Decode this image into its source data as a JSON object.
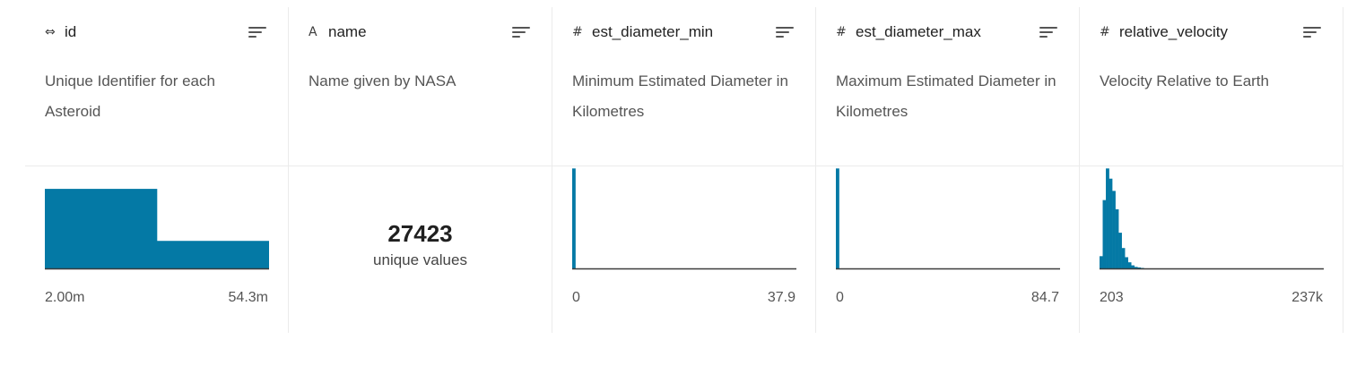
{
  "colors": {
    "bar": "#0479a5",
    "axis": "#3c3c3c",
    "divider": "#ebebeb"
  },
  "columns": [
    {
      "type_icon": "⇔",
      "type_icon_name": "key-icon",
      "name": "id",
      "description": "Unique Identifier for each Asteroid",
      "range_min": "2.00m",
      "range_max": "54.3m",
      "histogram": [
        0.78,
        0.27
      ]
    },
    {
      "type_icon": "A",
      "type_icon_name": "text-type-icon",
      "name": "name",
      "description": "Name given by NASA",
      "unique_count": "27423",
      "unique_label": "unique values"
    },
    {
      "type_icon": "#",
      "type_icon_name": "number-type-icon",
      "name": "est_diameter_min",
      "description": "Minimum Estimated Diameter in Kilometres",
      "range_min": "0",
      "range_max": "37.9",
      "histogram": [
        0.98,
        0,
        0,
        0,
        0,
        0,
        0,
        0,
        0,
        0,
        0,
        0,
        0,
        0,
        0,
        0,
        0,
        0,
        0,
        0,
        0,
        0,
        0,
        0,
        0,
        0,
        0,
        0,
        0,
        0,
        0,
        0,
        0,
        0,
        0,
        0,
        0,
        0,
        0,
        0,
        0,
        0,
        0,
        0,
        0,
        0,
        0,
        0,
        0,
        0,
        0,
        0,
        0,
        0,
        0,
        0,
        0,
        0,
        0,
        0,
        0,
        0,
        0,
        0,
        0,
        0,
        0,
        0,
        0,
        0,
        0
      ]
    },
    {
      "type_icon": "#",
      "type_icon_name": "number-type-icon",
      "name": "est_diameter_max",
      "description": "Maximum Estimated Diameter in Kilometres",
      "range_min": "0",
      "range_max": "84.7",
      "histogram": [
        0.98,
        0,
        0,
        0,
        0,
        0,
        0,
        0,
        0,
        0,
        0,
        0,
        0,
        0,
        0,
        0,
        0,
        0,
        0,
        0,
        0,
        0,
        0,
        0,
        0,
        0,
        0,
        0,
        0,
        0,
        0,
        0,
        0,
        0,
        0,
        0,
        0,
        0,
        0,
        0,
        0,
        0,
        0,
        0,
        0,
        0,
        0,
        0,
        0,
        0,
        0,
        0,
        0,
        0,
        0,
        0,
        0,
        0,
        0,
        0,
        0,
        0,
        0,
        0,
        0,
        0,
        0,
        0,
        0,
        0,
        0
      ]
    },
    {
      "type_icon": "#",
      "type_icon_name": "number-type-icon",
      "name": "relative_velocity",
      "description": "Velocity Relative to Earth",
      "range_min": "203",
      "range_max": "237k",
      "histogram": [
        0.12,
        0.67,
        0.98,
        0.88,
        0.76,
        0.58,
        0.35,
        0.2,
        0.11,
        0.06,
        0.03,
        0.015,
        0.01,
        0.005,
        0,
        0,
        0,
        0,
        0,
        0,
        0,
        0,
        0,
        0,
        0,
        0,
        0,
        0,
        0,
        0,
        0,
        0,
        0,
        0,
        0,
        0,
        0,
        0,
        0,
        0,
        0,
        0,
        0,
        0,
        0,
        0,
        0,
        0,
        0,
        0,
        0,
        0,
        0,
        0,
        0,
        0,
        0,
        0,
        0,
        0,
        0,
        0,
        0,
        0,
        0,
        0,
        0,
        0,
        0,
        0,
        0
      ]
    }
  ]
}
